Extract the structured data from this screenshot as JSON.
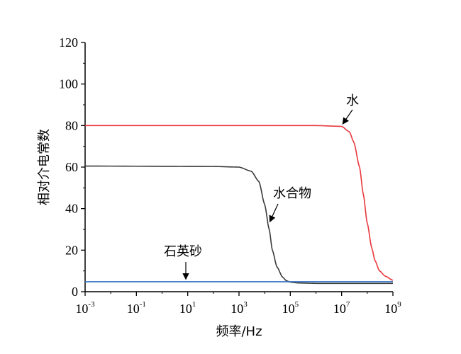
{
  "chart_data": {
    "type": "line",
    "xscale": "log",
    "xlabel": "频率/Hz",
    "ylabel": "相对介电常数",
    "xlim": [
      0.001,
      1000000000
    ],
    "ylim": [
      0,
      120
    ],
    "x_ticks": [
      {
        "base": "10",
        "exp": "-3"
      },
      {
        "base": "10",
        "exp": "-1"
      },
      {
        "base": "10",
        "exp": "1"
      },
      {
        "base": "10",
        "exp": "3"
      },
      {
        "base": "10",
        "exp": "5"
      },
      {
        "base": "10",
        "exp": "7"
      },
      {
        "base": "10",
        "exp": "9"
      }
    ],
    "y_ticks": [
      "0",
      "20",
      "40",
      "60",
      "80",
      "100",
      "120"
    ],
    "grid": false,
    "series": [
      {
        "name": "水",
        "color": "#e8383d",
        "x": [
          0.001,
          1000000,
          10000000,
          20000000,
          30000000,
          50000000,
          70000000,
          100000000,
          150000000,
          200000000,
          300000000,
          500000000,
          1000000000
        ],
        "values": [
          80,
          80,
          79.6,
          77,
          72,
          60,
          47,
          33,
          21,
          15,
          10,
          7.5,
          5.5
        ]
      },
      {
        "name": "水合物",
        "color": "#3a3a3a",
        "x": [
          0.001,
          100,
          1000,
          3000,
          6000,
          10000,
          15000,
          20000,
          30000,
          50000,
          70000,
          100000,
          200000,
          1000000,
          1000000000
        ],
        "values": [
          60.5,
          60.3,
          60,
          58,
          53,
          42,
          30,
          20,
          12,
          7,
          5.3,
          4.6,
          4.2,
          4,
          4
        ]
      },
      {
        "name": "石英砂",
        "color": "#2f6fc0",
        "x": [
          0.001,
          1000000000
        ],
        "values": [
          4.8,
          4.8
        ]
      }
    ],
    "annotations": [
      {
        "label": "水",
        "target_series": "水"
      },
      {
        "label": "水合物",
        "target_series": "水合物"
      },
      {
        "label": "石英砂",
        "target_series": "石英砂"
      }
    ]
  }
}
